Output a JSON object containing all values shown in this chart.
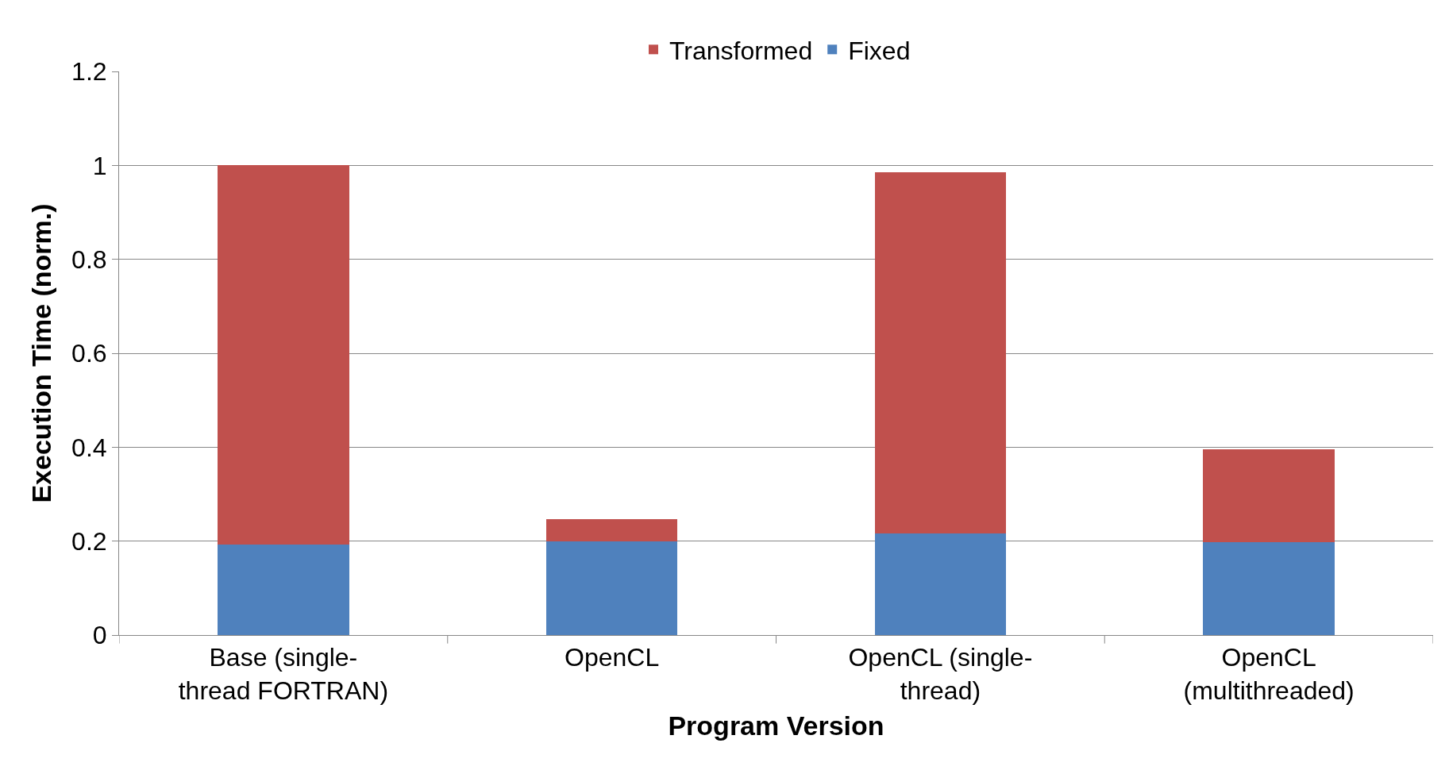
{
  "chart_data": {
    "type": "bar",
    "stacked": true,
    "xlabel": "Program Version",
    "ylabel": "Execution Time (norm.)",
    "categories": [
      "Base (single-thread FORTRAN)",
      "OpenCL",
      "OpenCL (single-thread)",
      "OpenCL (multithreaded)"
    ],
    "series": [
      {
        "name": "Fixed",
        "color": "#4f81bd",
        "values": [
          0.193,
          0.2,
          0.216,
          0.197
        ]
      },
      {
        "name": "Transformed",
        "color": "#c0504d",
        "values": [
          0.807,
          0.047,
          0.77,
          0.199
        ]
      }
    ],
    "ylim": [
      0,
      1.2
    ],
    "yticks": [
      0,
      0.2,
      0.4,
      0.6,
      0.8,
      1,
      1.2
    ],
    "grid": "y",
    "legend": "top"
  }
}
